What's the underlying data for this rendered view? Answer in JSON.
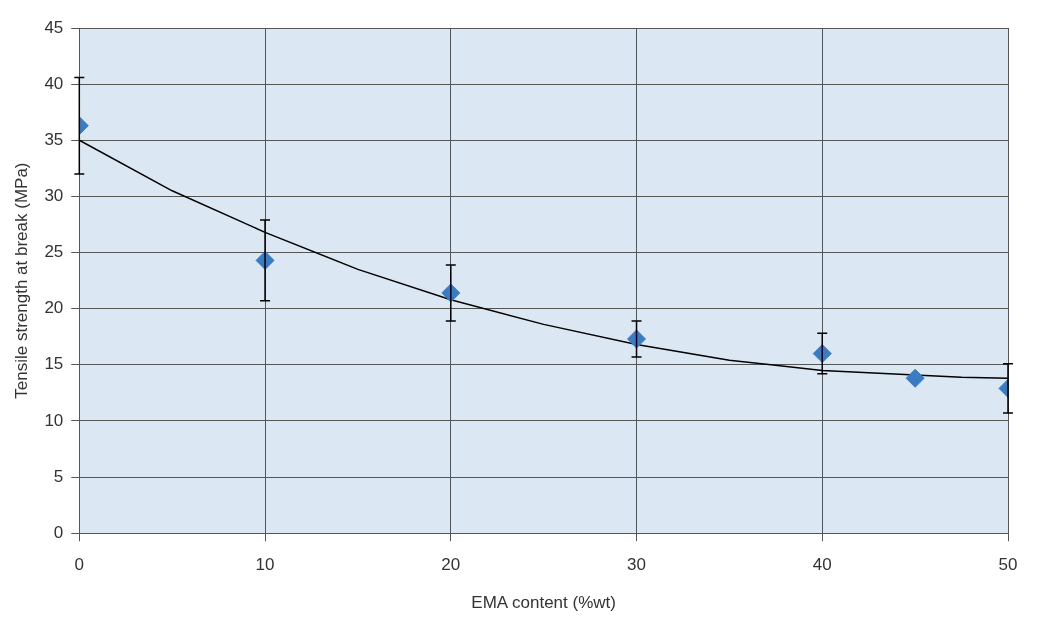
{
  "chart_data": {
    "type": "scatter",
    "xlabel": "EMA content (%wt)",
    "ylabel": "Tensile strength at break (MPa)",
    "xlim": [
      0,
      50
    ],
    "xticks": [
      0,
      10,
      20,
      30,
      40,
      50
    ],
    "ylim": [
      0,
      45
    ],
    "yticks": [
      0,
      5,
      10,
      15,
      20,
      25,
      30,
      35,
      40,
      45
    ],
    "grid": true,
    "legend": false,
    "marker": "diamond",
    "series": [
      {
        "type": "scatter",
        "color": "#3a7cc4",
        "x": [
          0,
          10,
          20,
          30,
          40,
          45,
          50
        ],
        "values": [
          36.3,
          24.3,
          21.4,
          17.3,
          16.0,
          13.8,
          12.9
        ],
        "errors": [
          4.3,
          3.6,
          2.5,
          1.6,
          1.8,
          null,
          2.2
        ]
      },
      {
        "type": "line",
        "color": "#000000",
        "marker": "none",
        "x": [
          0,
          5,
          10,
          15,
          20,
          25,
          30,
          35,
          40,
          47.5,
          50
        ],
        "values": [
          35.0,
          30.5,
          26.8,
          23.5,
          20.8,
          18.6,
          16.8,
          15.4,
          14.5,
          13.9,
          13.8
        ]
      }
    ]
  }
}
